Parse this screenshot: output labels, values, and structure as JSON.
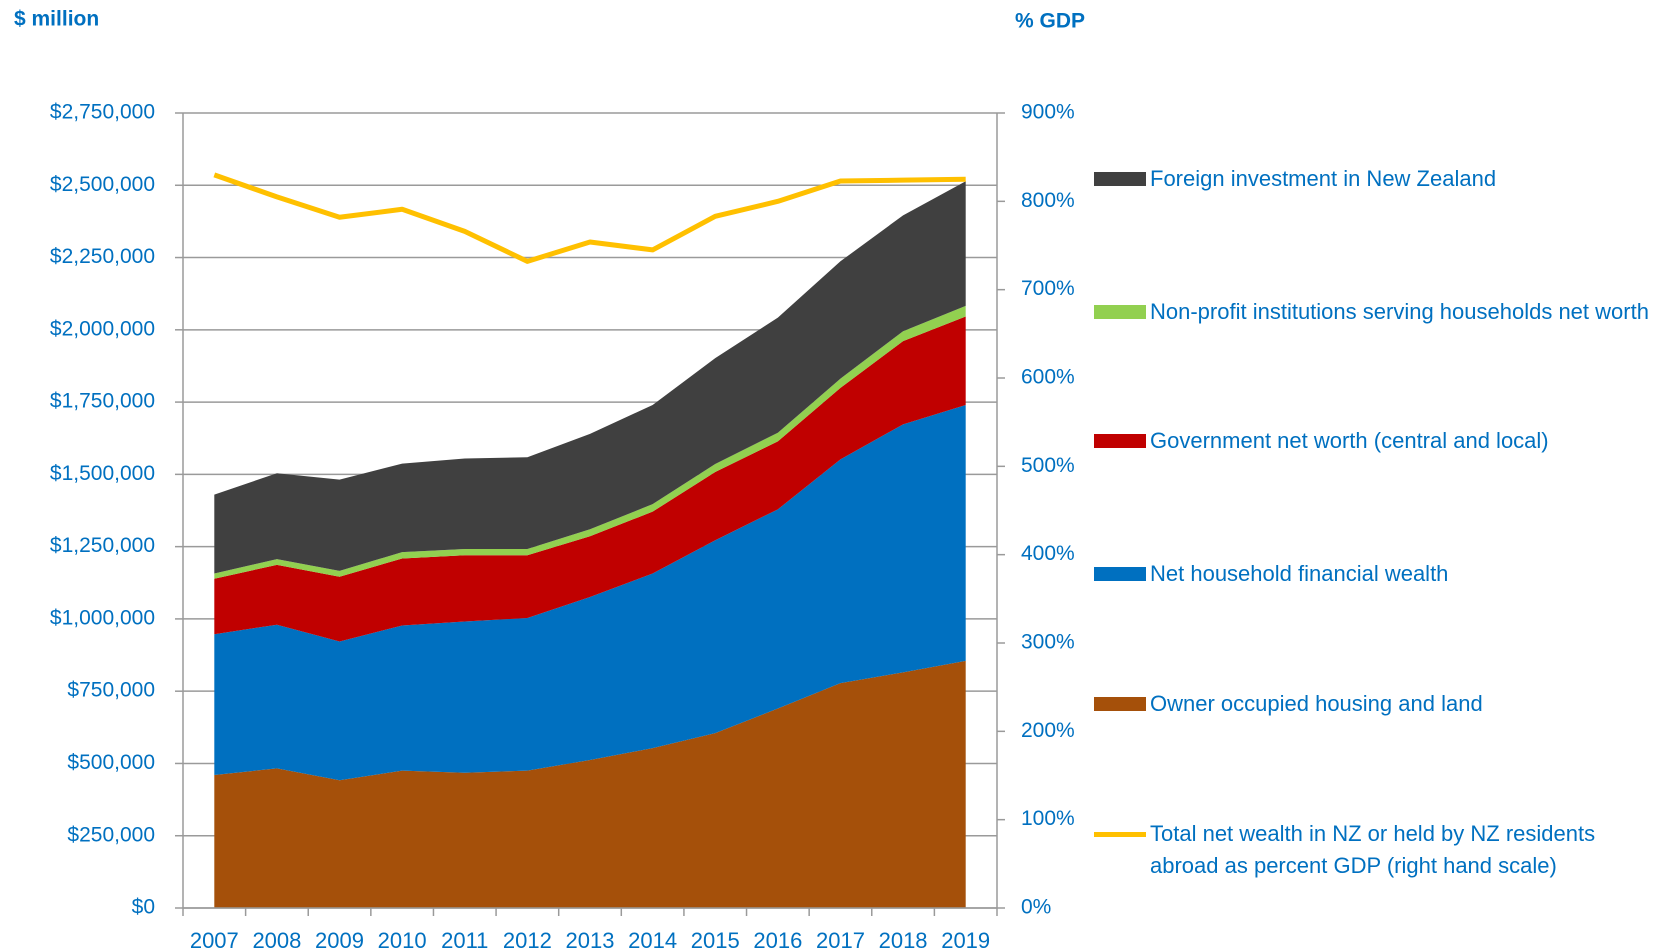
{
  "chart_data": {
    "type": "area",
    "y_label": "$ million",
    "y2_label": "% GDP",
    "categories": [
      "2007",
      "2008",
      "2009",
      "2010",
      "2011",
      "2012",
      "2013",
      "2014",
      "2015",
      "2016",
      "2017",
      "2018",
      "2019"
    ],
    "series": [
      {
        "name": "Owner occupied housing and land",
        "color": "#a5500a",
        "values": [
          460000,
          483000,
          442000,
          475000,
          468000,
          475000,
          512000,
          553000,
          605000,
          690000,
          778000,
          815000,
          855000
        ]
      },
      {
        "name": "Net household financial wealth",
        "color": "#0070c0",
        "values": [
          487000,
          497000,
          480000,
          502000,
          523000,
          528000,
          564000,
          604000,
          667000,
          689000,
          774000,
          858000,
          885000
        ]
      },
      {
        "name": "Government net worth (central and local)",
        "color": "#c00000",
        "values": [
          192000,
          207000,
          224000,
          232000,
          229000,
          217000,
          210000,
          214000,
          236000,
          235000,
          247000,
          288000,
          306000
        ]
      },
      {
        "name": "Non-profit institutions serving households net worth",
        "color": "#92d050",
        "values": [
          18000,
          20000,
          20000,
          22000,
          22000,
          22000,
          24000,
          26000,
          28000,
          30000,
          32000,
          34000,
          37000
        ]
      },
      {
        "name": "Foreign investment in New Zealand",
        "color": "#404040",
        "values": [
          273000,
          297000,
          316000,
          306000,
          313000,
          317000,
          330000,
          343000,
          366000,
          398000,
          406000,
          401000,
          431000
        ]
      },
      {
        "name": "Total net wealth in NZ or held by NZ residents abroad as percent GDP (right hand scale)",
        "type": "line",
        "axis": "y2",
        "color": "#ffc000",
        "values": [
          830,
          805,
          782,
          791,
          766,
          732,
          754,
          745,
          783,
          800,
          823,
          824,
          825
        ]
      }
    ],
    "ylim": [
      0,
      2750000
    ],
    "yticks": [
      {
        "value": 0,
        "label": "$0"
      },
      {
        "value": 250000,
        "label": "$250,000"
      },
      {
        "value": 500000,
        "label": "$500,000"
      },
      {
        "value": 750000,
        "label": "$750,000"
      },
      {
        "value": 1000000,
        "label": "$1,000,000"
      },
      {
        "value": 1250000,
        "label": "$1,250,000"
      },
      {
        "value": 1500000,
        "label": "$1,500,000"
      },
      {
        "value": 1750000,
        "label": "$1,750,000"
      },
      {
        "value": 2000000,
        "label": "$2,000,000"
      },
      {
        "value": 2250000,
        "label": "$2,250,000"
      },
      {
        "value": 2500000,
        "label": "$2,500,000"
      },
      {
        "value": 2750000,
        "label": "$2,750,000"
      }
    ],
    "y2lim": [
      0,
      900
    ],
    "y2ticks": [
      {
        "value": 0,
        "label": "0%"
      },
      {
        "value": 100,
        "label": "100%"
      },
      {
        "value": 200,
        "label": "200%"
      },
      {
        "value": 300,
        "label": "300%"
      },
      {
        "value": 400,
        "label": "400%"
      },
      {
        "value": 500,
        "label": "500%"
      },
      {
        "value": 600,
        "label": "600%"
      },
      {
        "value": 700,
        "label": "700%"
      },
      {
        "value": 800,
        "label": "800%"
      },
      {
        "value": 900,
        "label": "900%"
      }
    ],
    "grid": true,
    "legend": "right"
  }
}
